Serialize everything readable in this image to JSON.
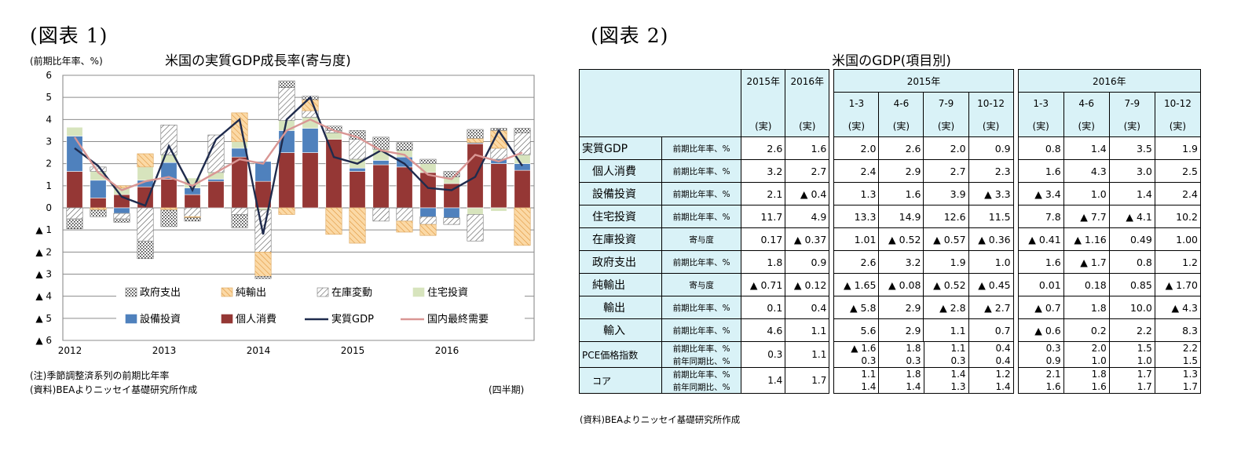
{
  "figure1": {
    "label": "(図表 1)",
    "title": "米国の実質GDP成長率(寄与度)",
    "yunit": "(前期比年率、%)",
    "note": "(注)季節調整済系列の前期比年率",
    "source": "(資料)BEAよりニッセイ基礎研究所作成",
    "xunit": "(四半期)"
  },
  "chart_data": {
    "type": "bar",
    "stacked": true,
    "ylim": [
      -6,
      6
    ],
    "yticks": [
      "6",
      "5",
      "4",
      "3",
      "2",
      "1",
      "0",
      "▲ 1",
      "▲ 2",
      "▲ 3",
      "▲ 4",
      "▲ 5",
      "▲ 6"
    ],
    "xticks": [
      "2012",
      "2013",
      "2014",
      "2015",
      "2016"
    ],
    "grid": true,
    "legend": "bottom inside",
    "categories": [
      "2012Q1",
      "2012Q2",
      "2012Q3",
      "2012Q4",
      "2013Q1",
      "2013Q2",
      "2013Q3",
      "2013Q4",
      "2014Q1",
      "2014Q2",
      "2014Q3",
      "2014Q4",
      "2015Q1",
      "2015Q2",
      "2015Q3",
      "2015Q4",
      "2016Q1",
      "2016Q2",
      "2016Q3",
      "2016Q4"
    ],
    "series": [
      {
        "name": "個人消費",
        "kind": "bar",
        "color": "#953735",
        "pattern": "solid",
        "values": [
          1.65,
          0.45,
          0.6,
          0.95,
          1.3,
          0.6,
          1.2,
          2.3,
          1.2,
          2.5,
          2.5,
          3.1,
          1.65,
          1.95,
          1.85,
          1.6,
          1.1,
          2.9,
          2.0,
          1.7
        ]
      },
      {
        "name": "設備投資",
        "kind": "bar",
        "color": "#4f81bd",
        "pattern": "solid",
        "values": [
          1.6,
          0.8,
          -0.25,
          0.3,
          0.75,
          0.3,
          0.1,
          0.4,
          0.9,
          1.0,
          1.1,
          0.0,
          0.15,
          0.2,
          0.45,
          -0.4,
          -0.45,
          0.05,
          0.2,
          0.3
        ]
      },
      {
        "name": "住宅投資",
        "kind": "bar",
        "color": "#d7e4bd",
        "pattern": "solid",
        "values": [
          0.4,
          0.4,
          0.3,
          0.6,
          0.35,
          0.45,
          0.3,
          0.3,
          -0.1,
          0.45,
          0.5,
          0.3,
          0.4,
          0.5,
          0.3,
          0.4,
          0.3,
          -0.3,
          -0.15,
          0.4
        ]
      },
      {
        "name": "在庫変動",
        "kind": "bar",
        "color": "#808080",
        "pattern": "diag",
        "values": [
          -0.5,
          0.2,
          -0.25,
          -1.5,
          1.35,
          -0.4,
          1.7,
          -0.3,
          -1.9,
          1.5,
          0.3,
          0.1,
          0.9,
          -0.6,
          -0.6,
          -0.35,
          -0.3,
          -1.2,
          0.5,
          1.0
        ]
      },
      {
        "name": "純輸出",
        "kind": "bar",
        "color": "#f2c47e",
        "pattern": "hatch",
        "values": [
          0.0,
          -0.1,
          0.1,
          0.6,
          -0.1,
          -0.05,
          0.0,
          1.3,
          -1.1,
          -0.3,
          0.5,
          -1.2,
          -1.6,
          0.0,
          -0.5,
          -0.5,
          0.0,
          0.2,
          0.8,
          -1.7
        ]
      },
      {
        "name": "政府支出",
        "kind": "bar",
        "color": "#404040",
        "pattern": "dots",
        "values": [
          -0.45,
          -0.3,
          -0.15,
          -0.8,
          -0.75,
          -0.15,
          0.0,
          -0.6,
          -0.1,
          0.3,
          0.15,
          0.2,
          0.4,
          0.55,
          0.35,
          0.2,
          0.25,
          0.4,
          0.1,
          0.2
        ]
      },
      {
        "name": "実質GDP",
        "kind": "line",
        "color": "#1f2b4d",
        "values": [
          2.7,
          1.9,
          0.5,
          0.1,
          2.8,
          0.8,
          3.1,
          4.0,
          -1.2,
          4.0,
          5.0,
          2.3,
          2.0,
          2.6,
          2.0,
          0.9,
          0.8,
          1.4,
          3.5,
          1.9
        ]
      },
      {
        "name": "国内最終需要",
        "kind": "line",
        "color": "#d99694",
        "values": [
          3.2,
          1.6,
          0.8,
          1.2,
          1.4,
          1.0,
          1.6,
          2.2,
          2.0,
          3.5,
          4.0,
          3.5,
          3.2,
          2.6,
          2.4,
          1.5,
          1.3,
          2.4,
          2.1,
          2.5
        ]
      }
    ],
    "legend_rows": [
      [
        "政府支出",
        "純輸出",
        "在庫変動",
        "住宅投資"
      ],
      [
        "設備投資",
        "個人消費",
        "実質GDP",
        "国内最終需要"
      ]
    ]
  },
  "figure2": {
    "label": "(図表 2)",
    "title": "米国のGDP(項目別)",
    "source": "(資料)BEAよりニッセイ基礎研究所作成",
    "header": {
      "y2015": "2015年",
      "y2016": "2016年",
      "q2015": "2015年",
      "q2016": "2016年",
      "quarters": [
        "1-3",
        "4-6",
        "7-9",
        "10-12"
      ],
      "jitsu": "(実)"
    },
    "rows": [
      {
        "label": "実質GDP",
        "indent": 0,
        "unit": "前期比年率、%",
        "values": [
          "2.6",
          "1.6",
          "2.0",
          "2.6",
          "2.0",
          "0.9",
          "0.8",
          "1.4",
          "3.5",
          "1.9"
        ]
      },
      {
        "label": "個人消費",
        "indent": 1,
        "unit": "前期比年率、%",
        "values": [
          "3.2",
          "2.7",
          "2.4",
          "2.9",
          "2.7",
          "2.3",
          "1.6",
          "4.3",
          "3.0",
          "2.5"
        ]
      },
      {
        "label": "設備投資",
        "indent": 1,
        "unit": "前期比年率、%",
        "values": [
          "2.1",
          "▲ 0.4",
          "1.3",
          "1.6",
          "3.9",
          "▲ 3.3",
          "▲ 3.4",
          "1.0",
          "1.4",
          "2.4"
        ]
      },
      {
        "label": "住宅投資",
        "indent": 1,
        "unit": "前期比年率、%",
        "values": [
          "11.7",
          "4.9",
          "13.3",
          "14.9",
          "12.6",
          "11.5",
          "7.8",
          "▲ 7.7",
          "▲ 4.1",
          "10.2"
        ]
      },
      {
        "label": "在庫投資",
        "indent": 1,
        "unit": "寄与度",
        "values": [
          "0.17",
          "▲ 0.37",
          "1.01",
          "▲ 0.52",
          "▲ 0.57",
          "▲ 0.36",
          "▲ 0.41",
          "▲ 1.16",
          "0.49",
          "1.00"
        ]
      },
      {
        "label": "政府支出",
        "indent": 1,
        "unit": "前期比年率、%",
        "values": [
          "1.8",
          "0.9",
          "2.6",
          "3.2",
          "1.9",
          "1.0",
          "1.6",
          "▲ 1.7",
          "0.8",
          "1.2"
        ]
      },
      {
        "label": "純輸出",
        "indent": 1,
        "unit": "寄与度",
        "values": [
          "▲ 0.71",
          "▲ 0.12",
          "▲ 1.65",
          "▲ 0.08",
          "▲ 0.52",
          "▲ 0.45",
          "0.01",
          "0.18",
          "0.85",
          "▲ 1.70"
        ]
      },
      {
        "label": "輸出",
        "indent": 2,
        "unit": "前期比年率、%",
        "values": [
          "0.1",
          "0.4",
          "▲ 5.8",
          "2.9",
          "▲ 2.8",
          "▲ 2.7",
          "▲ 0.7",
          "1.8",
          "10.0",
          "▲ 4.3"
        ]
      },
      {
        "label": "輸入",
        "indent": 2,
        "unit": "前期比年率、%",
        "values": [
          "4.6",
          "1.1",
          "5.6",
          "2.9",
          "1.1",
          "0.7",
          "▲ 0.6",
          "0.2",
          "2.2",
          "8.3"
        ]
      }
    ],
    "pce": {
      "label": "PCE価格指数",
      "unit_a": "前期比年率、%",
      "unit_b": "前年同期比、%",
      "annual": [
        "0.3",
        "1.1"
      ],
      "qa": [
        "▲ 1.6",
        "1.8",
        "1.1",
        "0.4",
        "0.3",
        "2.0",
        "1.5",
        "2.2"
      ],
      "qb": [
        "0.3",
        "0.3",
        "0.3",
        "0.4",
        "0.9",
        "1.0",
        "1.0",
        "1.5"
      ]
    },
    "core": {
      "label": "コア",
      "unit_a": "前期比年率、%",
      "unit_b": "前年同期比、%",
      "annual": [
        "1.4",
        "1.7"
      ],
      "qa": [
        "1.1",
        "1.8",
        "1.4",
        "1.2",
        "2.1",
        "1.8",
        "1.7",
        "1.3"
      ],
      "qb": [
        "1.4",
        "1.4",
        "1.3",
        "1.4",
        "1.6",
        "1.6",
        "1.7",
        "1.7"
      ]
    }
  }
}
